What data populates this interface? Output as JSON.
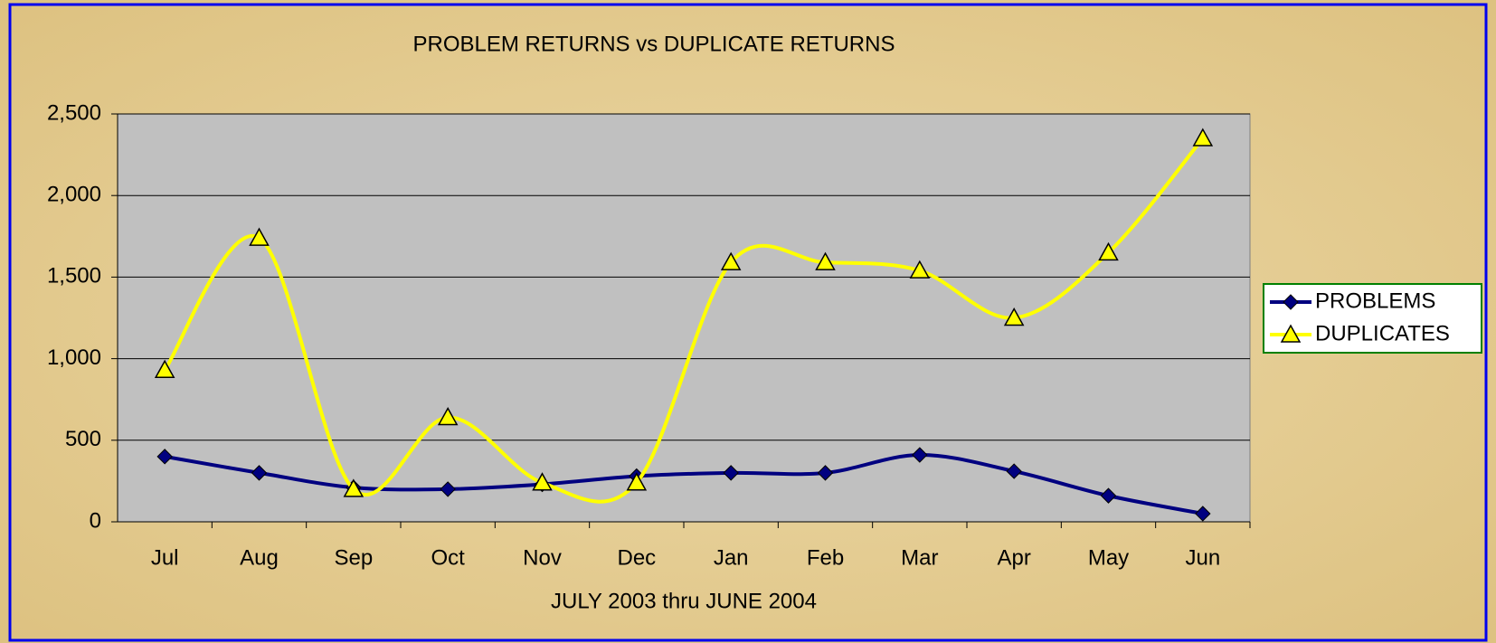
{
  "chart_data": {
    "type": "line",
    "title": "PROBLEM RETURNS vs DUPLICATE RETURNS",
    "x_label": "JULY 2003 thru JUNE 2004",
    "categories": [
      "Jul",
      "Aug",
      "Sep",
      "Oct",
      "Nov",
      "Dec",
      "Jan",
      "Feb",
      "Mar",
      "Apr",
      "May",
      "Jun"
    ],
    "series": [
      {
        "name": "PROBLEMS",
        "color": "#000080",
        "marker": "diamond",
        "values": [
          400,
          300,
          210,
          200,
          230,
          280,
          300,
          300,
          410,
          310,
          160,
          50
        ]
      },
      {
        "name": "DUPLICATES",
        "color": "#ffff00",
        "marker": "triangle",
        "values": [
          930,
          1740,
          200,
          640,
          240,
          240,
          1590,
          1590,
          1540,
          1250,
          1650,
          2350
        ]
      }
    ],
    "ylim": [
      0,
      2500
    ],
    "yticks": [
      0,
      500,
      {
        "value": 1000,
        "label": "1,000"
      },
      {
        "value": 1500,
        "label": "1,500"
      },
      {
        "value": 2000,
        "label": "2,000"
      },
      {
        "value": 2500,
        "label": "2,500"
      }
    ],
    "grid": true,
    "smooth": true,
    "legend": "right"
  }
}
